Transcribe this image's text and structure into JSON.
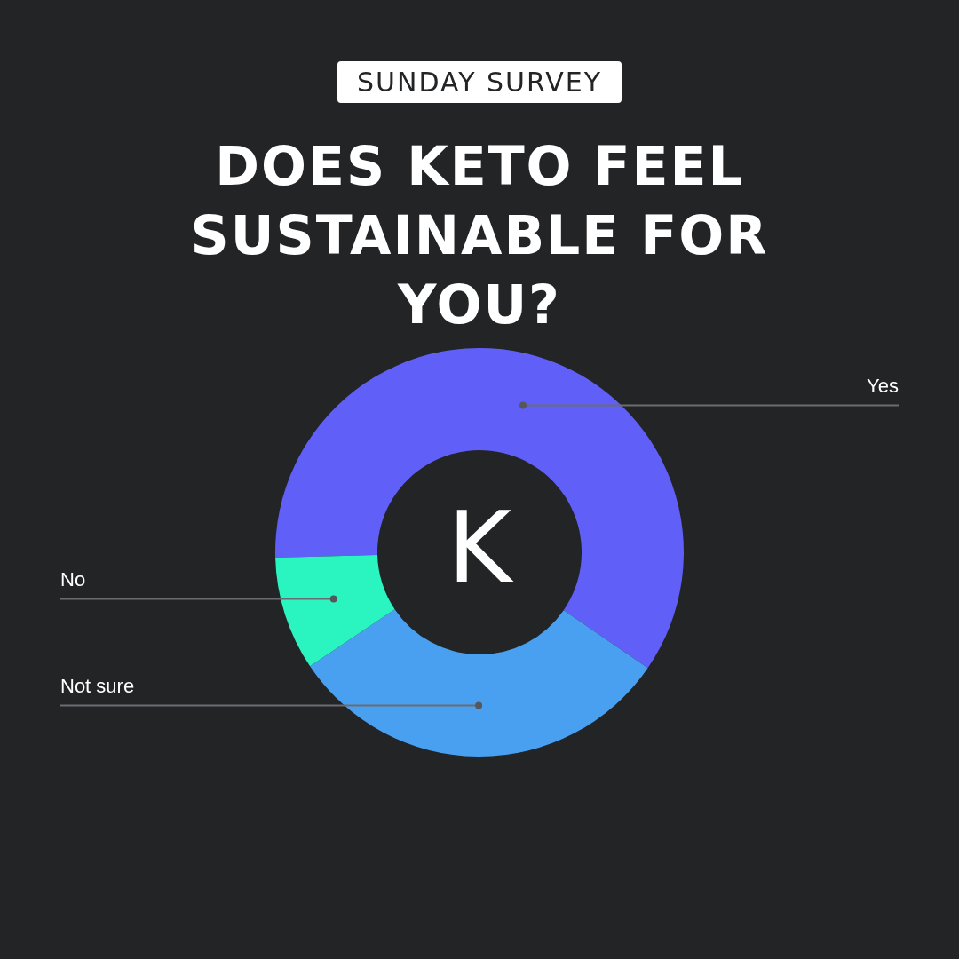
{
  "chart_data": {
    "type": "donut",
    "subtitle": "SUNDAY SURVEY",
    "title": "DOES KETO FEEL SUSTAINABLE FOR YOU?",
    "categories": [
      "Yes",
      "Not sure",
      "No"
    ],
    "values": [
      60,
      31,
      9
    ],
    "colors": [
      "#6060f8",
      "#4aa0f0",
      "#2af5c0"
    ],
    "legend": false,
    "annotations": [
      "K"
    ]
  }
}
